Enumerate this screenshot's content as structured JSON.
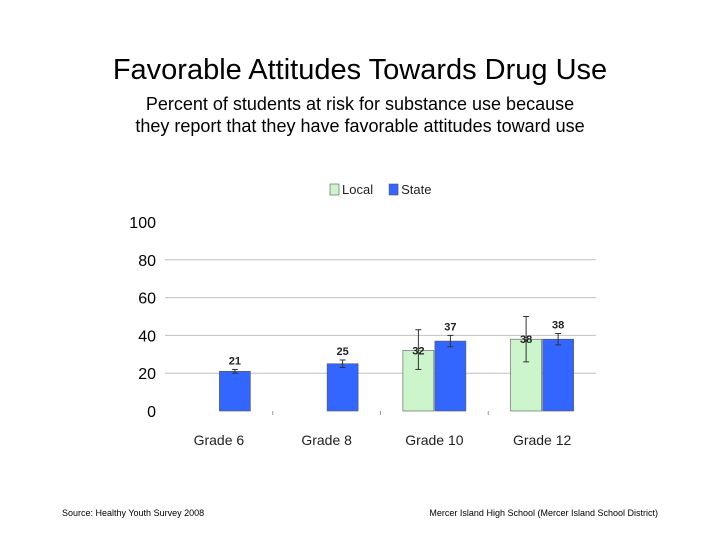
{
  "slide": {
    "title": "Favorable Attitudes Towards Drug Use",
    "subtitle_line1": "Percent of students at risk for substance use because",
    "subtitle_line2": "they report that they have favorable attitudes toward use",
    "source": "Source: Healthy Youth Survey 2008",
    "institution": "Mercer Island High School (Mercer Island School District)"
  },
  "chart_data": {
    "type": "bar",
    "categories": [
      "Grade 6",
      "Grade 8",
      "Grade 10",
      "Grade 12"
    ],
    "series": [
      {
        "name": "Local",
        "color": "#ccf5cc",
        "values": [
          null,
          null,
          32,
          38
        ],
        "error_low": [
          null,
          null,
          22,
          26
        ],
        "error_high": [
          null,
          null,
          43,
          50
        ]
      },
      {
        "name": "State",
        "color": "#3366ff",
        "values": [
          21,
          25,
          37,
          38
        ],
        "error_low": [
          20,
          23,
          34,
          35
        ],
        "error_high": [
          22,
          27,
          40,
          41
        ]
      }
    ],
    "ylim": [
      0,
      100
    ],
    "yticks": [
      0,
      20,
      40,
      60,
      80,
      100
    ],
    "ylabel": "",
    "xlabel": "",
    "grid": true,
    "legend_position": "top"
  }
}
